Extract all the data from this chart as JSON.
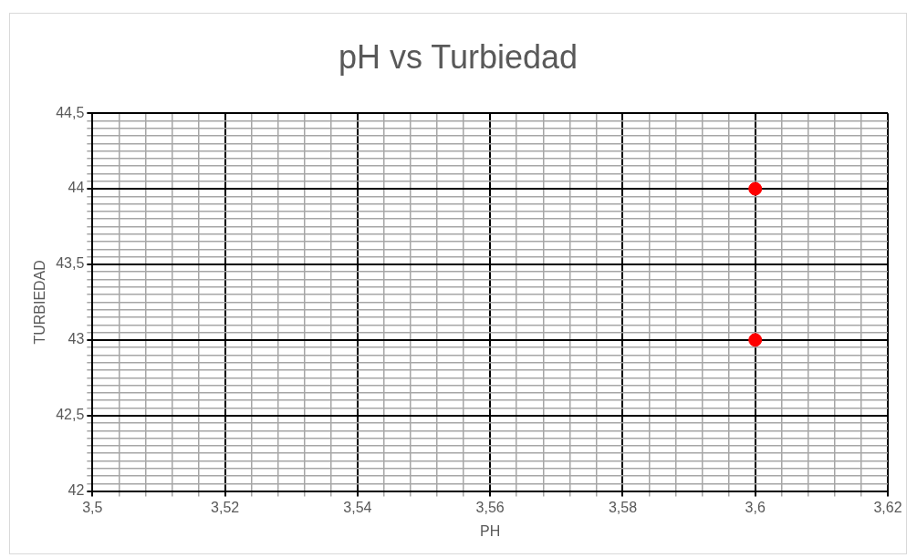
{
  "chart_data": {
    "type": "scatter",
    "title": "pH vs Turbiedad",
    "xlabel": "PH",
    "ylabel": "TURBIEDAD",
    "x": [
      3.6,
      3.6
    ],
    "series": [
      {
        "color": "#ff0000",
        "values": [
          44,
          43
        ]
      }
    ],
    "marker": "circle",
    "grid": true,
    "legend": false,
    "xlim": [
      3.5,
      3.62
    ],
    "ylim": [
      42,
      44.5
    ],
    "xticks": [
      {
        "value": 3.5,
        "label": "3,5"
      },
      {
        "value": 3.504,
        "label": null
      },
      {
        "value": 3.508,
        "label": null
      },
      {
        "value": 3.512,
        "label": null
      },
      {
        "value": 3.516,
        "label": null
      },
      {
        "value": 3.52,
        "label": "3,52"
      },
      {
        "value": 3.524,
        "label": null
      },
      {
        "value": 3.528,
        "label": null
      },
      {
        "value": 3.532,
        "label": null
      },
      {
        "value": 3.536,
        "label": null
      },
      {
        "value": 3.54,
        "label": "3,54"
      },
      {
        "value": 3.544,
        "label": null
      },
      {
        "value": 3.548,
        "label": null
      },
      {
        "value": 3.552,
        "label": null
      },
      {
        "value": 3.556,
        "label": null
      },
      {
        "value": 3.56,
        "label": "3,56"
      },
      {
        "value": 3.564,
        "label": null
      },
      {
        "value": 3.568,
        "label": null
      },
      {
        "value": 3.572,
        "label": null
      },
      {
        "value": 3.576,
        "label": null
      },
      {
        "value": 3.58,
        "label": "3,58"
      },
      {
        "value": 3.584,
        "label": null
      },
      {
        "value": 3.588,
        "label": null
      },
      {
        "value": 3.592,
        "label": null
      },
      {
        "value": 3.596,
        "label": null
      },
      {
        "value": 3.6,
        "label": "3,6"
      },
      {
        "value": 3.604,
        "label": null
      },
      {
        "value": 3.608,
        "label": null
      },
      {
        "value": 3.612,
        "label": null
      },
      {
        "value": 3.616,
        "label": null
      },
      {
        "value": 3.62,
        "label": "3,62"
      }
    ],
    "yticks": [
      42,
      {
        "value": 42.05,
        "label": null
      },
      {
        "value": 42.1,
        "label": null
      },
      {
        "value": 42.15,
        "label": null
      },
      {
        "value": 42.2,
        "label": null
      },
      {
        "value": 42.25,
        "label": null
      },
      {
        "value": 42.3,
        "label": null
      },
      {
        "value": 42.35,
        "label": null
      },
      {
        "value": 42.4,
        "label": null
      },
      {
        "value": 42.45,
        "label": null
      },
      {
        "value": 42.5,
        "label": "42,5"
      },
      {
        "value": 42.55,
        "label": null
      },
      {
        "value": 42.6,
        "label": null
      },
      {
        "value": 42.65,
        "label": null
      },
      {
        "value": 42.7,
        "label": null
      },
      {
        "value": 42.75,
        "label": null
      },
      {
        "value": 42.8,
        "label": null
      },
      {
        "value": 42.85,
        "label": null
      },
      {
        "value": 42.9,
        "label": null
      },
      {
        "value": 42.95,
        "label": null
      },
      43,
      {
        "value": 43.05,
        "label": null
      },
      {
        "value": 43.1,
        "label": null
      },
      {
        "value": 43.15,
        "label": null
      },
      {
        "value": 43.2,
        "label": null
      },
      {
        "value": 43.25,
        "label": null
      },
      {
        "value": 43.3,
        "label": null
      },
      {
        "value": 43.35,
        "label": null
      },
      {
        "value": 43.4,
        "label": null
      },
      {
        "value": 43.45,
        "label": null
      },
      {
        "value": 43.5,
        "label": "43,5"
      },
      {
        "value": 43.55,
        "label": null
      },
      {
        "value": 43.6,
        "label": null
      },
      {
        "value": 43.65,
        "label": null
      },
      {
        "value": 43.7,
        "label": null
      },
      {
        "value": 43.75,
        "label": null
      },
      {
        "value": 43.8,
        "label": null
      },
      {
        "value": 43.85,
        "label": null
      },
      {
        "value": 43.9,
        "label": null
      },
      {
        "value": 43.95,
        "label": null
      },
      44,
      {
        "value": 44.05,
        "label": null
      },
      {
        "value": 44.1,
        "label": null
      },
      {
        "value": 44.15,
        "label": null
      },
      {
        "value": 44.2,
        "label": null
      },
      {
        "value": 44.25,
        "label": null
      },
      {
        "value": 44.3,
        "label": null
      },
      {
        "value": 44.35,
        "label": null
      },
      {
        "value": 44.4,
        "label": null
      },
      {
        "value": 44.45,
        "label": null
      },
      {
        "value": 44.5,
        "label": "44,5"
      }
    ]
  }
}
